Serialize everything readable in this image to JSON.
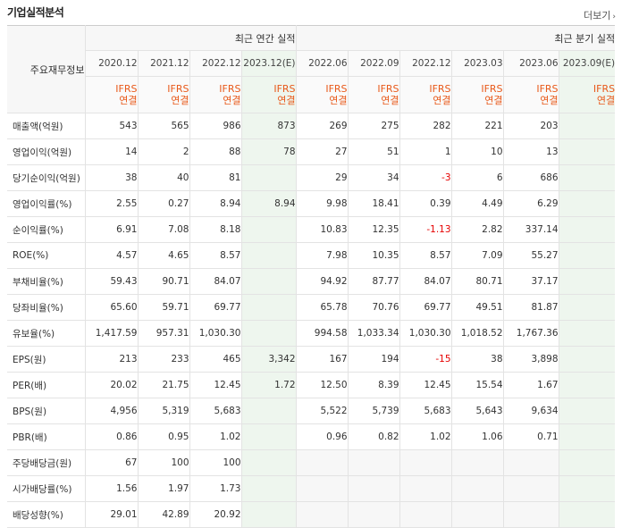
{
  "header": {
    "title": "기업실적분석",
    "more_label": "더보기"
  },
  "table": {
    "corner_label": "주요재무정보",
    "annual_group": "최근 연간 실적",
    "quarter_group": "최근 분기 실적",
    "periods": [
      {
        "date": "2020.12",
        "acc1": "IFRS",
        "acc2": "연결",
        "est": false
      },
      {
        "date": "2021.12",
        "acc1": "IFRS",
        "acc2": "연결",
        "est": false
      },
      {
        "date": "2022.12",
        "acc1": "IFRS",
        "acc2": "연결",
        "est": false
      },
      {
        "date": "2023.12(E)",
        "acc1": "IFRS",
        "acc2": "연결",
        "est": true
      },
      {
        "date": "2022.06",
        "acc1": "IFRS",
        "acc2": "연결",
        "est": false
      },
      {
        "date": "2022.09",
        "acc1": "IFRS",
        "acc2": "연결",
        "est": false
      },
      {
        "date": "2022.12",
        "acc1": "IFRS",
        "acc2": "연결",
        "est": false
      },
      {
        "date": "2023.03",
        "acc1": "IFRS",
        "acc2": "연결",
        "est": false
      },
      {
        "date": "2023.06",
        "acc1": "IFRS",
        "acc2": "연결",
        "est": false
      },
      {
        "date": "2023.09(E)",
        "acc1": "IFRS",
        "acc2": "연결",
        "est": true
      }
    ],
    "rows": [
      {
        "label": "매출액(억원)",
        "values": [
          "543",
          "565",
          "986",
          "873",
          "269",
          "275",
          "282",
          "221",
          "203",
          ""
        ]
      },
      {
        "label": "영업이익(억원)",
        "values": [
          "14",
          "2",
          "88",
          "78",
          "27",
          "51",
          "1",
          "10",
          "13",
          ""
        ]
      },
      {
        "label": "당기순이익(억원)",
        "values": [
          "38",
          "40",
          "81",
          "",
          "29",
          "34",
          "-3",
          "6",
          "686",
          ""
        ]
      },
      {
        "label": "영업이익률(%)",
        "values": [
          "2.55",
          "0.27",
          "8.94",
          "8.94",
          "9.98",
          "18.41",
          "0.39",
          "4.49",
          "6.29",
          ""
        ]
      },
      {
        "label": "순이익률(%)",
        "values": [
          "6.91",
          "7.08",
          "8.18",
          "",
          "10.83",
          "12.35",
          "-1.13",
          "2.82",
          "337.14",
          ""
        ]
      },
      {
        "label": "ROE(%)",
        "values": [
          "4.57",
          "4.65",
          "8.57",
          "",
          "7.98",
          "10.35",
          "8.57",
          "7.09",
          "55.27",
          ""
        ]
      },
      {
        "label": "부채비율(%)",
        "values": [
          "59.43",
          "90.71",
          "84.07",
          "",
          "94.92",
          "87.77",
          "84.07",
          "80.71",
          "37.17",
          ""
        ]
      },
      {
        "label": "당좌비율(%)",
        "values": [
          "65.60",
          "59.71",
          "69.77",
          "",
          "65.78",
          "70.76",
          "69.77",
          "49.51",
          "81.87",
          ""
        ]
      },
      {
        "label": "유보율(%)",
        "values": [
          "1,417.59",
          "957.31",
          "1,030.30",
          "",
          "994.58",
          "1,033.34",
          "1,030.30",
          "1,018.52",
          "1,767.36",
          ""
        ]
      },
      {
        "label": "EPS(원)",
        "values": [
          "213",
          "233",
          "465",
          "3,342",
          "167",
          "194",
          "-15",
          "38",
          "3,898",
          ""
        ]
      },
      {
        "label": "PER(배)",
        "values": [
          "20.02",
          "21.75",
          "12.45",
          "1.72",
          "12.50",
          "8.39",
          "12.45",
          "15.54",
          "1.67",
          ""
        ]
      },
      {
        "label": "BPS(원)",
        "values": [
          "4,956",
          "5,319",
          "5,683",
          "",
          "5,522",
          "5,739",
          "5,683",
          "5,643",
          "9,634",
          ""
        ]
      },
      {
        "label": "PBR(배)",
        "values": [
          "0.86",
          "0.95",
          "1.02",
          "",
          "0.96",
          "0.82",
          "1.02",
          "1.06",
          "0.71",
          ""
        ]
      },
      {
        "label": "주당배당금(원)",
        "values": [
          "67",
          "100",
          "100",
          "",
          "",
          "",
          "",
          "",
          "",
          ""
        ]
      },
      {
        "label": "시가배당률(%)",
        "values": [
          "1.56",
          "1.97",
          "1.73",
          "",
          "",
          "",
          "",
          "",
          "",
          ""
        ]
      },
      {
        "label": "배당성향(%)",
        "values": [
          "29.01",
          "42.89",
          "20.92",
          "",
          "",
          "",
          "",
          "",
          "",
          ""
        ]
      }
    ]
  },
  "colors": {
    "accent_orange": "#e8591a",
    "negative_red": "#e60000",
    "estimate_bg": "#eef6ee",
    "estimate_text": "#3b9d3b"
  }
}
